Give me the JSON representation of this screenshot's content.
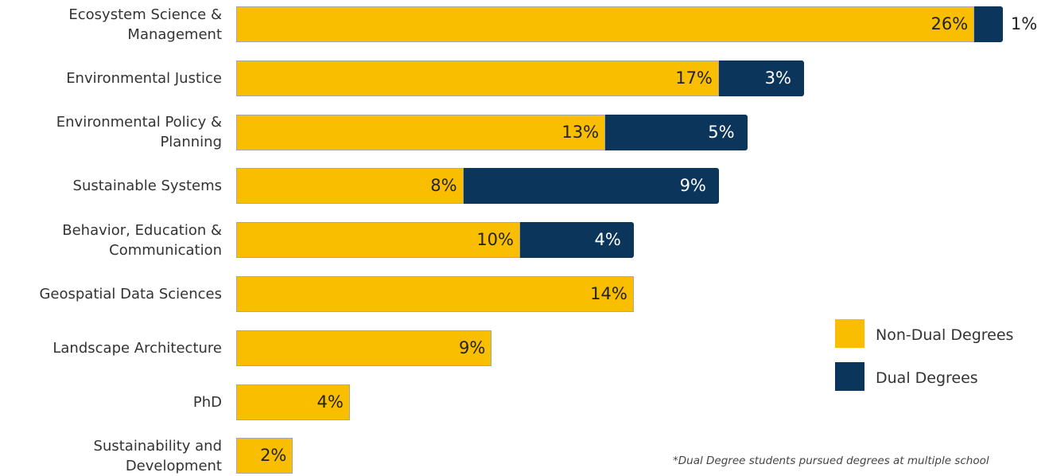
{
  "chart_data": {
    "type": "bar",
    "orientation": "horizontal",
    "stacked": true,
    "categories": [
      "Ecosystem Science & Management",
      "Environmental Justice",
      "Environmental Policy & Planning",
      "Sustainable Systems",
      "Behavior, Education & Communication",
      "Geospatial Data Sciences",
      "Landscape Architecture",
      "PhD",
      "Sustainability and Development"
    ],
    "category_lines": [
      [
        "Ecosystem Science &",
        "Management"
      ],
      [
        "Environmental Justice"
      ],
      [
        "Environmental Policy &",
        "Planning"
      ],
      [
        "Sustainable Systems"
      ],
      [
        "Behavior, Education &",
        "Communication"
      ],
      [
        "Geospatial Data Sciences"
      ],
      [
        "Landscape Architecture"
      ],
      [
        "PhD"
      ],
      [
        "Sustainability and",
        "Development"
      ]
    ],
    "series": [
      {
        "name": "Non-Dual Degrees",
        "color": "#F9BE00",
        "values": [
          26,
          17,
          13,
          8,
          10,
          14,
          9,
          4,
          2
        ],
        "labels": [
          "26%",
          "17%",
          "13%",
          "8%",
          "10%",
          "14%",
          "9%",
          "4%",
          "2%"
        ]
      },
      {
        "name": "Dual Degrees",
        "color": "#0C355C",
        "values": [
          1,
          3,
          5,
          9,
          4,
          0,
          0,
          0,
          0
        ],
        "labels": [
          "1%",
          "3%",
          "5%",
          "9%",
          "4%",
          "",
          "",
          "",
          ""
        ]
      }
    ],
    "unit": "%",
    "grid": false,
    "legend_position": "right",
    "footnote": "*Dual Degree students pursued degrees at multiple school"
  }
}
